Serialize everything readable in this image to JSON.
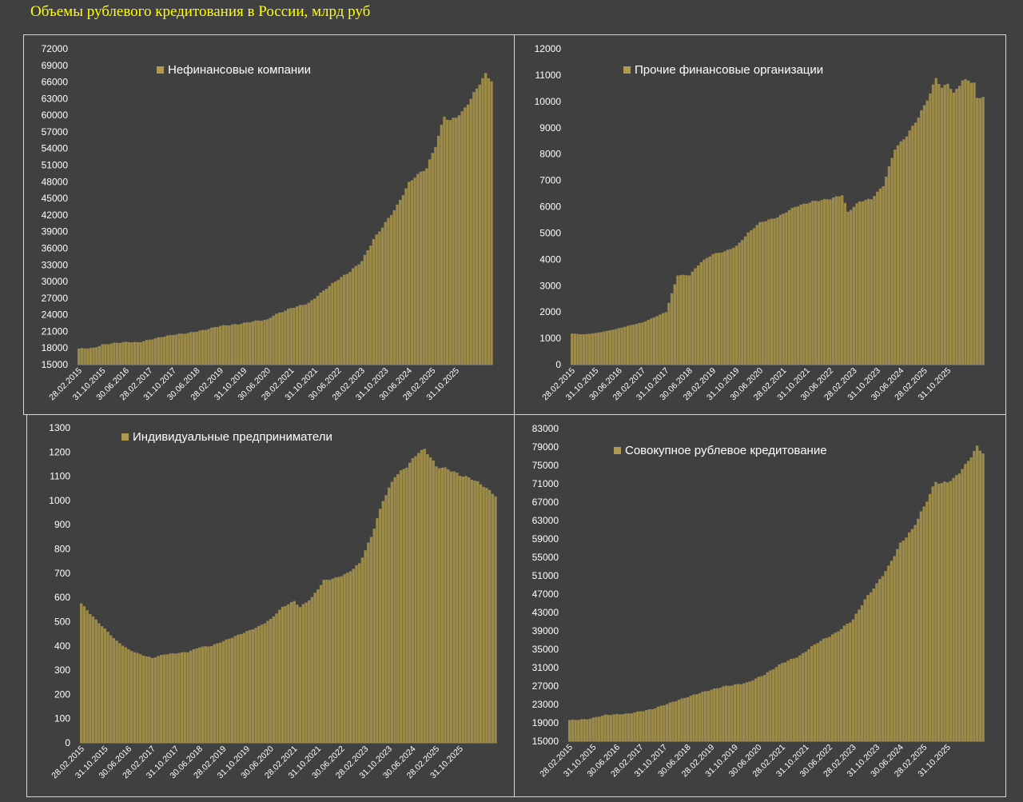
{
  "title": "Объемы рублевого кредитования в России, млрд руб",
  "colors": {
    "background": "#404040",
    "bar": "#9c8a48",
    "legend_marker": "#b09a52",
    "text": "#ffffff",
    "title": "#ffff00",
    "grid": "#d8d8d8"
  },
  "x_tick_labels": [
    "28.02.2015",
    "31.10.2015",
    "30.06.2016",
    "28.02.2017",
    "31.10.2017",
    "30.06.2018",
    "28.02.2019",
    "31.10.2019",
    "30.06.2020",
    "28.02.2021",
    "31.10.2021",
    "30.06.2022",
    "28.02.2023",
    "31.10.2023",
    "30.06.2024",
    "28.02.2025",
    "31.10.2025"
  ],
  "chart_data": [
    {
      "type": "bar",
      "legend": "Нефинансовые компании",
      "x_start": "28.02.2015",
      "x_end": "31.12.2025",
      "frequency": "monthly",
      "ylim": [
        15000,
        72000
      ],
      "yticks": [
        15000,
        18000,
        21000,
        24000,
        27000,
        30000,
        33000,
        36000,
        39000,
        42000,
        45000,
        48000,
        51000,
        54000,
        57000,
        60000,
        63000,
        66000,
        69000,
        72000
      ],
      "anchors": [
        [
          0,
          17900
        ],
        [
          5,
          18000
        ],
        [
          8,
          18600
        ],
        [
          12,
          18900
        ],
        [
          17,
          19100
        ],
        [
          20,
          19000
        ],
        [
          24,
          19500
        ],
        [
          29,
          20100
        ],
        [
          32,
          20400
        ],
        [
          37,
          20700
        ],
        [
          42,
          21200
        ],
        [
          48,
          22000
        ],
        [
          54,
          22300
        ],
        [
          60,
          22900
        ],
        [
          64,
          23100
        ],
        [
          66,
          23900
        ],
        [
          72,
          25200
        ],
        [
          78,
          26100
        ],
        [
          84,
          28800
        ],
        [
          88,
          30400
        ],
        [
          92,
          31800
        ],
        [
          96,
          33700
        ],
        [
          100,
          37600
        ],
        [
          104,
          40600
        ],
        [
          108,
          43700
        ],
        [
          112,
          47800
        ],
        [
          114,
          48900
        ],
        [
          118,
          50500
        ],
        [
          121,
          54500
        ],
        [
          124,
          59800
        ],
        [
          126,
          59000
        ],
        [
          130,
          60500
        ],
        [
          133,
          63000
        ],
        [
          136,
          65800
        ],
        [
          138,
          67400
        ],
        [
          140,
          66300
        ]
      ]
    },
    {
      "type": "bar",
      "legend": "Прочие финансовые организации",
      "x_start": "28.02.2015",
      "x_end": "31.12.2025",
      "frequency": "monthly",
      "ylim": [
        0,
        12000
      ],
      "yticks": [
        0,
        1000,
        2000,
        3000,
        4000,
        5000,
        6000,
        7000,
        8000,
        9000,
        10000,
        11000,
        12000
      ],
      "anchors": [
        [
          0,
          1180
        ],
        [
          4,
          1150
        ],
        [
          8,
          1200
        ],
        [
          12,
          1280
        ],
        [
          16,
          1380
        ],
        [
          20,
          1500
        ],
        [
          24,
          1600
        ],
        [
          28,
          1800
        ],
        [
          32,
          2000
        ],
        [
          36,
          3400
        ],
        [
          40,
          3400
        ],
        [
          44,
          3900
        ],
        [
          48,
          4200
        ],
        [
          52,
          4300
        ],
        [
          56,
          4500
        ],
        [
          60,
          5000
        ],
        [
          64,
          5400
        ],
        [
          70,
          5600
        ],
        [
          76,
          6000
        ],
        [
          82,
          6200
        ],
        [
          88,
          6300
        ],
        [
          92,
          6450
        ],
        [
          94,
          5800
        ],
        [
          98,
          6200
        ],
        [
          102,
          6300
        ],
        [
          106,
          6800
        ],
        [
          110,
          8200
        ],
        [
          114,
          8700
        ],
        [
          118,
          9400
        ],
        [
          122,
          10300
        ],
        [
          124,
          10900
        ],
        [
          126,
          10500
        ],
        [
          128,
          10700
        ],
        [
          130,
          10300
        ],
        [
          133,
          10800
        ],
        [
          135,
          10800
        ],
        [
          137,
          10700
        ],
        [
          138,
          10100
        ],
        [
          140,
          10200
        ]
      ]
    },
    {
      "type": "bar",
      "legend": "Индивидуальные предприниматели",
      "x_start": "28.02.2015",
      "x_end": "31.12.2025",
      "frequency": "monthly",
      "ylim": [
        0,
        1300
      ],
      "yticks": [
        0,
        100,
        200,
        300,
        400,
        500,
        600,
        700,
        800,
        900,
        1000,
        1100,
        1200,
        1300
      ],
      "anchors": [
        [
          0,
          575
        ],
        [
          4,
          520
        ],
        [
          8,
          470
        ],
        [
          12,
          420
        ],
        [
          16,
          385
        ],
        [
          20,
          365
        ],
        [
          24,
          350
        ],
        [
          28,
          365
        ],
        [
          32,
          370
        ],
        [
          36,
          375
        ],
        [
          40,
          395
        ],
        [
          44,
          400
        ],
        [
          48,
          420
        ],
        [
          52,
          440
        ],
        [
          56,
          460
        ],
        [
          60,
          480
        ],
        [
          64,
          510
        ],
        [
          68,
          560
        ],
        [
          72,
          585
        ],
        [
          74,
          560
        ],
        [
          78,
          600
        ],
        [
          82,
          670
        ],
        [
          86,
          680
        ],
        [
          90,
          700
        ],
        [
          94,
          740
        ],
        [
          98,
          850
        ],
        [
          102,
          1000
        ],
        [
          106,
          1100
        ],
        [
          110,
          1140
        ],
        [
          114,
          1200
        ],
        [
          116,
          1210
        ],
        [
          118,
          1180
        ],
        [
          120,
          1140
        ],
        [
          124,
          1130
        ],
        [
          128,
          1105
        ],
        [
          132,
          1090
        ],
        [
          136,
          1060
        ],
        [
          140,
          1020
        ]
      ]
    },
    {
      "type": "bar",
      "legend": "Совокупное рублевое кредитование",
      "x_start": "28.02.2015",
      "x_end": "31.12.2025",
      "frequency": "monthly",
      "ylim": [
        15000,
        83000
      ],
      "yticks": [
        15000,
        19000,
        23000,
        27000,
        31000,
        35000,
        39000,
        43000,
        47000,
        51000,
        55000,
        59000,
        63000,
        67000,
        71000,
        75000,
        79000,
        83000
      ],
      "anchors": [
        [
          0,
          19600
        ],
        [
          6,
          19800
        ],
        [
          12,
          20700
        ],
        [
          20,
          21000
        ],
        [
          28,
          22000
        ],
        [
          36,
          23800
        ],
        [
          44,
          25500
        ],
        [
          52,
          26900
        ],
        [
          60,
          27700
        ],
        [
          66,
          29500
        ],
        [
          72,
          32000
        ],
        [
          78,
          33600
        ],
        [
          84,
          36500
        ],
        [
          90,
          38500
        ],
        [
          96,
          41500
        ],
        [
          100,
          45800
        ],
        [
          104,
          49200
        ],
        [
          108,
          53000
        ],
        [
          112,
          58000
        ],
        [
          116,
          61000
        ],
        [
          120,
          66000
        ],
        [
          124,
          71500
        ],
        [
          126,
          71000
        ],
        [
          130,
          72000
        ],
        [
          134,
          75000
        ],
        [
          137,
          78000
        ],
        [
          138,
          79000
        ],
        [
          140,
          77800
        ]
      ]
    }
  ]
}
